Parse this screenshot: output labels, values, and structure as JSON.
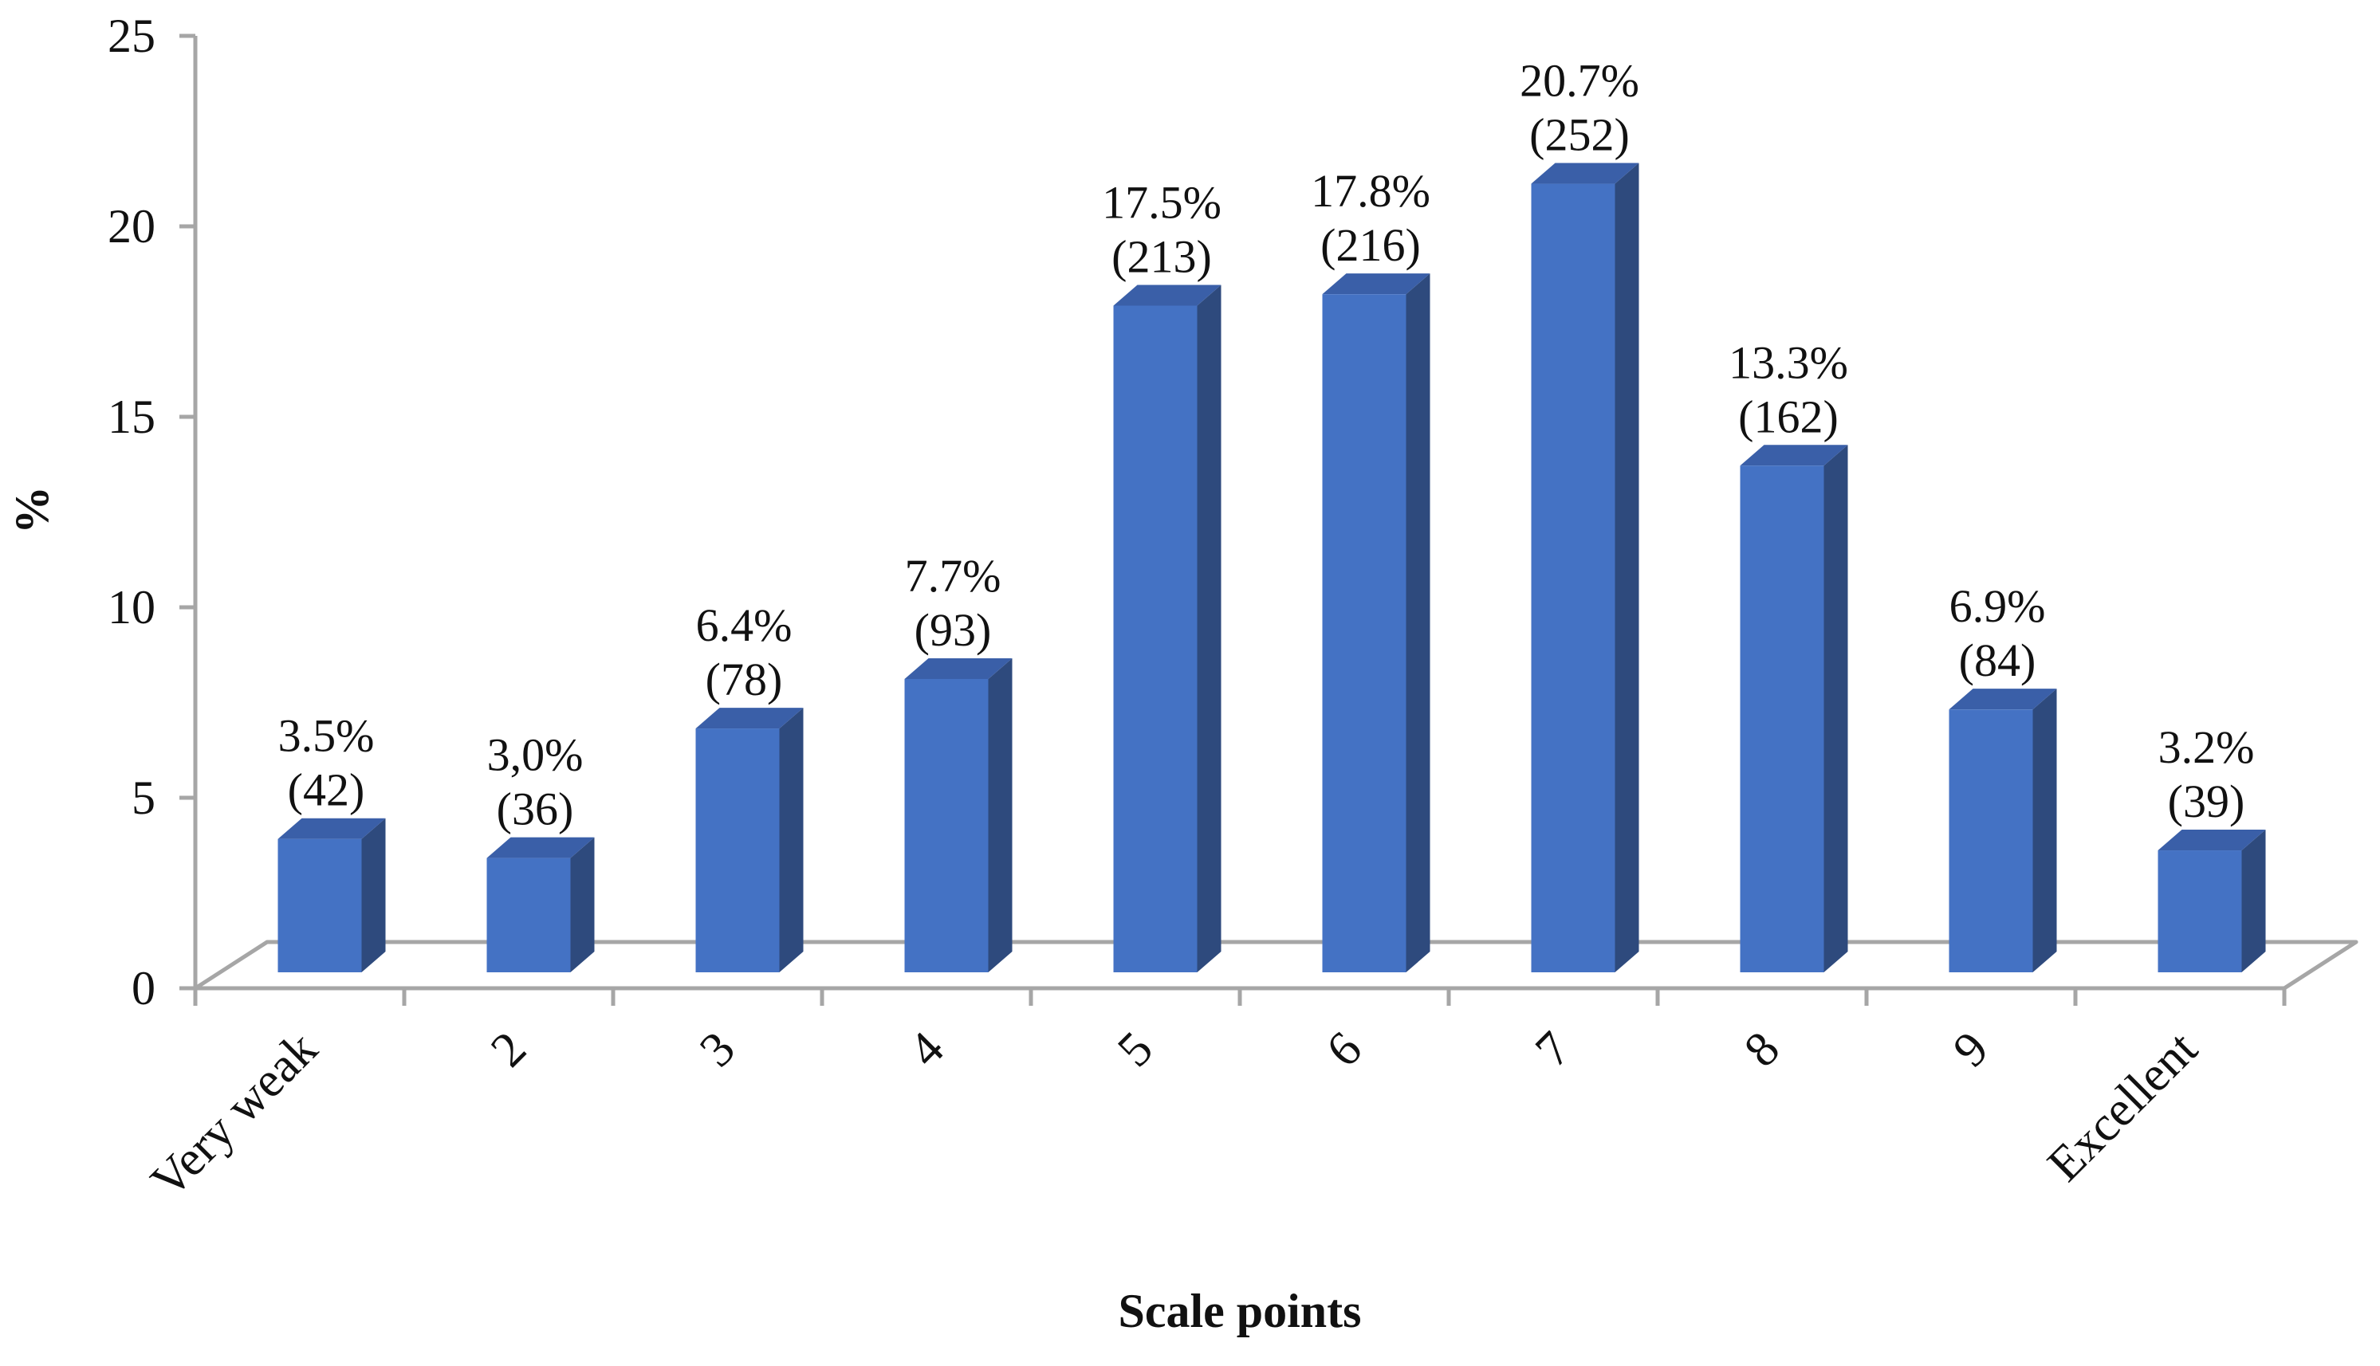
{
  "chart_data": {
    "type": "bar",
    "style": "3d-column",
    "categories": [
      "Very weak",
      "2",
      "3",
      "4",
      "5",
      "6",
      "7",
      "8",
      "9",
      "Excellent"
    ],
    "values": [
      3.5,
      3.0,
      6.4,
      7.7,
      17.5,
      17.8,
      20.7,
      13.3,
      6.9,
      3.2
    ],
    "counts": [
      42,
      36,
      78,
      93,
      213,
      216,
      252,
      162,
      84,
      39
    ],
    "data_labels": [
      [
        "3.5%",
        "(42)"
      ],
      [
        "3,0%",
        "(36)"
      ],
      [
        "6.4%",
        "(78)"
      ],
      [
        "7.7%",
        "(93)"
      ],
      [
        "17.5%",
        "(213)"
      ],
      [
        "17.8%",
        "(216)"
      ],
      [
        "20.7%",
        "(252)"
      ],
      [
        "13.3%",
        "(162)"
      ],
      [
        "6.9%",
        "(84)"
      ],
      [
        "3.2%",
        "(39)"
      ]
    ],
    "xlabel": "Scale points",
    "ylabel": "%",
    "ylim": [
      0,
      25
    ],
    "yticks": [
      0,
      5,
      10,
      15,
      20,
      25
    ],
    "grid": false,
    "legend": "none",
    "colors": {
      "bar_front": "#4472c4",
      "bar_side": "#2e4a7d",
      "bar_top": "#3a5fa8",
      "axis": "#a6a6a6"
    }
  }
}
